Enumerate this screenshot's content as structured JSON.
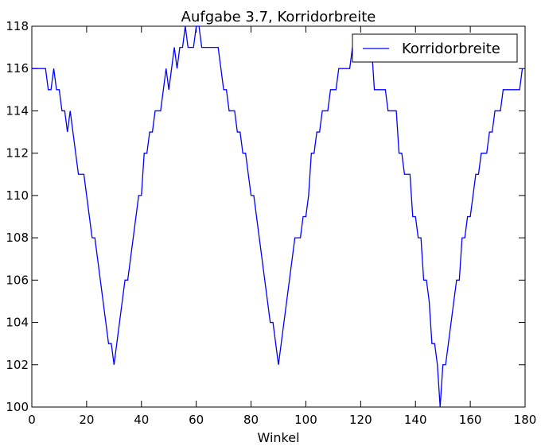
{
  "chart_data": {
    "type": "line",
    "title": "Aufgabe 3.7, Korridorbreite",
    "xlabel": "Winkel",
    "ylabel": "",
    "xlim": [
      0,
      180
    ],
    "ylim": [
      100,
      118
    ],
    "xticks": [
      "0",
      "20",
      "40",
      "60",
      "80",
      "100",
      "120",
      "140",
      "160",
      "180"
    ],
    "yticks": [
      "100",
      "102",
      "104",
      "106",
      "108",
      "110",
      "112",
      "114",
      "116",
      "118"
    ],
    "grid": false,
    "legend": {
      "position": "top-right",
      "entries": [
        "Korridorbreite"
      ]
    },
    "series": [
      {
        "name": "Korridorbreite",
        "color": "#0000ff",
        "x": [
          0,
          1,
          2,
          3,
          4,
          5,
          6,
          7,
          8,
          9,
          10,
          11,
          12,
          13,
          14,
          15,
          16,
          17,
          18,
          19,
          20,
          21,
          22,
          23,
          24,
          25,
          26,
          27,
          28,
          29,
          30,
          31,
          32,
          33,
          34,
          35,
          36,
          37,
          38,
          39,
          40,
          41,
          42,
          43,
          44,
          45,
          46,
          47,
          48,
          49,
          50,
          51,
          52,
          53,
          54,
          55,
          56,
          57,
          58,
          59,
          60,
          61,
          62,
          63,
          64,
          65,
          66,
          67,
          68,
          69,
          70,
          71,
          72,
          73,
          74,
          75,
          76,
          77,
          78,
          79,
          80,
          81,
          82,
          83,
          84,
          85,
          86,
          87,
          88,
          89,
          90,
          91,
          92,
          93,
          94,
          95,
          96,
          97,
          98,
          99,
          100,
          101,
          102,
          103,
          104,
          105,
          106,
          107,
          108,
          109,
          110,
          111,
          112,
          113,
          114,
          115,
          116,
          117,
          118,
          119,
          120,
          121,
          122,
          123,
          124,
          125,
          126,
          127,
          128,
          129,
          130,
          131,
          132,
          133,
          134,
          135,
          136,
          137,
          138,
          139,
          140,
          141,
          142,
          143,
          144,
          145,
          146,
          147,
          148,
          149,
          150,
          151,
          152,
          153,
          154,
          155,
          156,
          157,
          158,
          159,
          160,
          161,
          162,
          163,
          164,
          165,
          166,
          167,
          168,
          169,
          170,
          171,
          172,
          173,
          174,
          175,
          176,
          177,
          178,
          179
        ],
        "y": [
          116,
          116,
          116,
          116,
          116,
          116,
          115,
          115,
          116,
          115,
          115,
          114,
          114,
          113,
          114,
          113,
          112,
          111,
          111,
          111,
          110,
          109,
          108,
          108,
          107,
          106,
          105,
          104,
          103,
          103,
          102,
          103,
          104,
          105,
          106,
          106,
          107,
          108,
          109,
          110,
          110,
          112,
          112,
          113,
          113,
          114,
          114,
          114,
          115,
          116,
          115,
          116,
          117,
          116,
          117,
          117,
          118,
          117,
          117,
          117,
          118,
          118,
          117,
          117,
          117,
          117,
          117,
          117,
          117,
          116,
          115,
          115,
          114,
          114,
          114,
          113,
          113,
          112,
          112,
          111,
          110,
          110,
          109,
          108,
          107,
          106,
          105,
          104,
          104,
          103,
          102,
          103,
          104,
          105,
          106,
          107,
          108,
          108,
          108,
          109,
          109,
          110,
          112,
          112,
          113,
          113,
          114,
          114,
          114,
          115,
          115,
          115,
          116,
          116,
          116,
          116,
          116,
          117,
          117,
          117,
          117,
          117,
          117,
          117,
          117,
          115,
          115,
          115,
          115,
          115,
          114,
          114,
          114,
          114,
          112,
          112,
          111,
          111,
          111,
          109,
          109,
          108,
          108,
          106,
          106,
          105,
          103,
          103,
          102,
          100,
          102,
          102,
          103,
          104,
          105,
          106,
          106,
          108,
          108,
          109,
          109,
          110,
          111,
          111,
          112,
          112,
          112,
          113,
          113,
          114,
          114,
          114,
          115,
          115,
          115,
          115,
          115,
          115,
          115,
          116
        ]
      }
    ]
  }
}
